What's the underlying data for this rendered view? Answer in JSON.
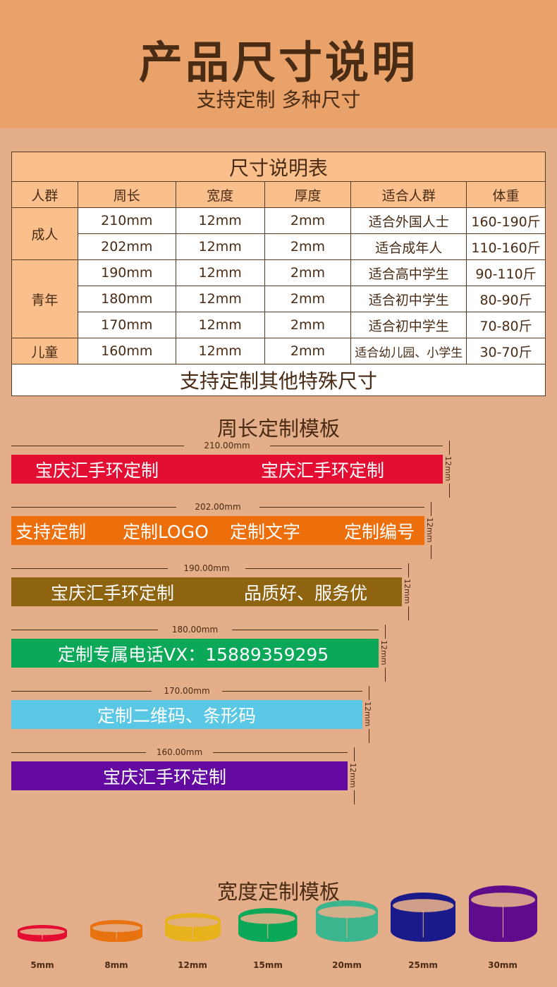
{
  "header": {
    "title": "产品尺寸说明",
    "subtitle": "支持定制  多种尺寸"
  },
  "table": {
    "title": "尺寸说明表",
    "columns": [
      "人群",
      "周长",
      "宽度",
      "厚度",
      "适合人群",
      "体重"
    ],
    "groups": [
      {
        "group": "成人",
        "rows": [
          [
            "210mm",
            "12mm",
            "2mm",
            "适合外国人士",
            "160-190斤"
          ],
          [
            "202mm",
            "12mm",
            "2mm",
            "适合成年人",
            "110-160斤"
          ]
        ]
      },
      {
        "group": "青年",
        "rows": [
          [
            "190mm",
            "12mm",
            "2mm",
            "适合高中学生",
            "90-110斤"
          ],
          [
            "180mm",
            "12mm",
            "2mm",
            "适合初中学生",
            "80-90斤"
          ],
          [
            "170mm",
            "12mm",
            "2mm",
            "适合初中学生",
            "70-80斤"
          ]
        ]
      },
      {
        "group": "儿童",
        "rows": [
          [
            "160mm",
            "12mm",
            "2mm",
            "适合幼儿园、小学生",
            "30-70斤"
          ]
        ]
      }
    ],
    "footer": "支持定制其他特殊尺寸"
  },
  "length_section": {
    "title": "周长定制模板",
    "bands": [
      {
        "length": "210.00mm",
        "width": "12mm",
        "color": "#e40e33",
        "texts": [
          "宝庆汇手环定制",
          "宝庆汇手环定制"
        ]
      },
      {
        "length": "202.00mm",
        "width": "12mm",
        "color": "#ec6f0c",
        "texts": [
          "支持定制",
          "定制LOGO",
          "定制文字",
          "定制编号"
        ]
      },
      {
        "length": "190.00mm",
        "width": "12mm",
        "color": "#8f6410",
        "texts": [
          "宝庆汇手环定制",
          "品质好、服务优"
        ]
      },
      {
        "length": "180.00mm",
        "width": "12mm",
        "color": "#0aa858",
        "texts": [
          "定制专属电话VX：15889359295"
        ]
      },
      {
        "length": "170.00mm",
        "width": "12mm",
        "color": "#5ac8e4",
        "texts": [
          "定制二维码、条形码"
        ]
      },
      {
        "length": "160.00mm",
        "width": "12mm",
        "color": "#650aa0",
        "texts": [
          "宝庆汇手环定制"
        ]
      }
    ]
  },
  "width_section": {
    "title": "宽度定制模板",
    "rings": [
      {
        "label": "5mm",
        "mm": 5,
        "color": "#e40e33"
      },
      {
        "label": "8mm",
        "mm": 8,
        "color": "#e8720f"
      },
      {
        "label": "12mm",
        "mm": 12,
        "color": "#e8b21c"
      },
      {
        "label": "15mm",
        "mm": 15,
        "color": "#0aa858"
      },
      {
        "label": "20mm",
        "mm": 20,
        "color": "#3bb58e"
      },
      {
        "label": "25mm",
        "mm": 25,
        "color": "#1a1a8a"
      },
      {
        "label": "30mm",
        "mm": 30,
        "color": "#5e0c8c"
      }
    ]
  }
}
